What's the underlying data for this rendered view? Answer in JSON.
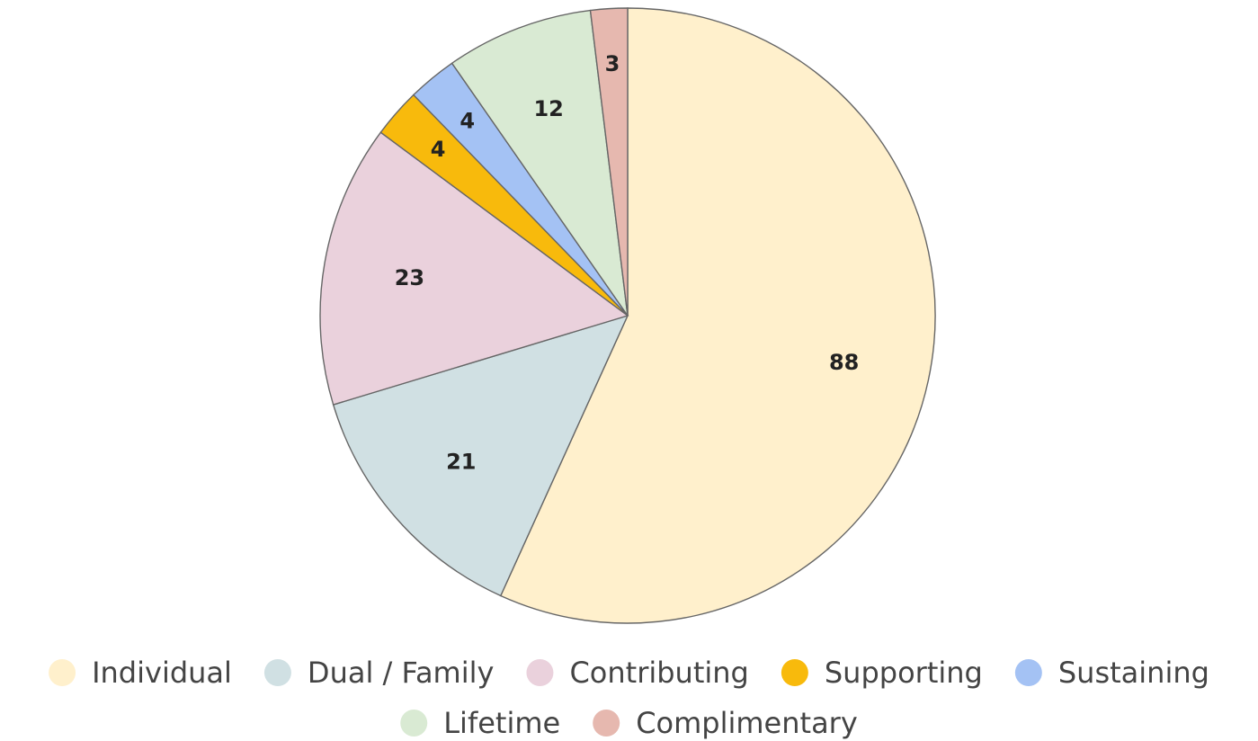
{
  "chart_data": {
    "type": "pie",
    "title": "",
    "legend_position": "bottom",
    "start_angle_deg": 0,
    "direction": "clockwise",
    "slices": [
      {
        "label": "Individual",
        "value": 88,
        "color": "#FFF0CC"
      },
      {
        "label": "Dual / Family",
        "value": 21,
        "color": "#D0E0E3"
      },
      {
        "label": "Contributing",
        "value": 23,
        "color": "#EAD1DC"
      },
      {
        "label": "Supporting",
        "value": 4,
        "color": "#F8BA0C"
      },
      {
        "label": "Sustaining",
        "value": 4,
        "color": "#A4C2F4"
      },
      {
        "label": "Lifetime",
        "value": 12,
        "color": "#D9EAD3"
      },
      {
        "label": "Complimentary",
        "value": 3,
        "color": "#E6B8AF"
      }
    ]
  }
}
